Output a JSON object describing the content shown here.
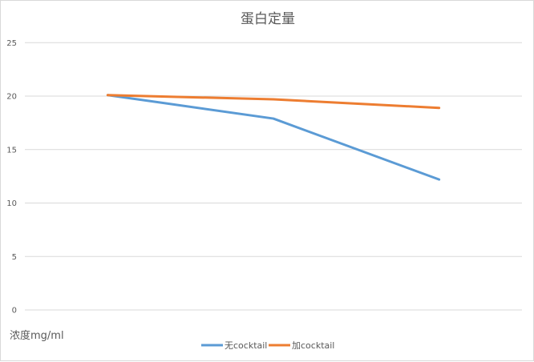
{
  "chart_data": {
    "type": "line",
    "title": "蛋白定量",
    "ylabel": "浓度mg/ml",
    "xlabel": "",
    "categories": [
      "",
      "",
      ""
    ],
    "ylim": [
      0,
      25
    ],
    "yticks": [
      0,
      5,
      10,
      15,
      20,
      25
    ],
    "grid": true,
    "legend": "bottom",
    "series": [
      {
        "name": "无cocktail",
        "color": "#5b9bd5",
        "values": [
          20.1,
          17.9,
          12.2
        ]
      },
      {
        "name": "加cocktail",
        "color": "#ed7d31",
        "values": [
          20.1,
          19.7,
          18.9
        ]
      }
    ]
  }
}
